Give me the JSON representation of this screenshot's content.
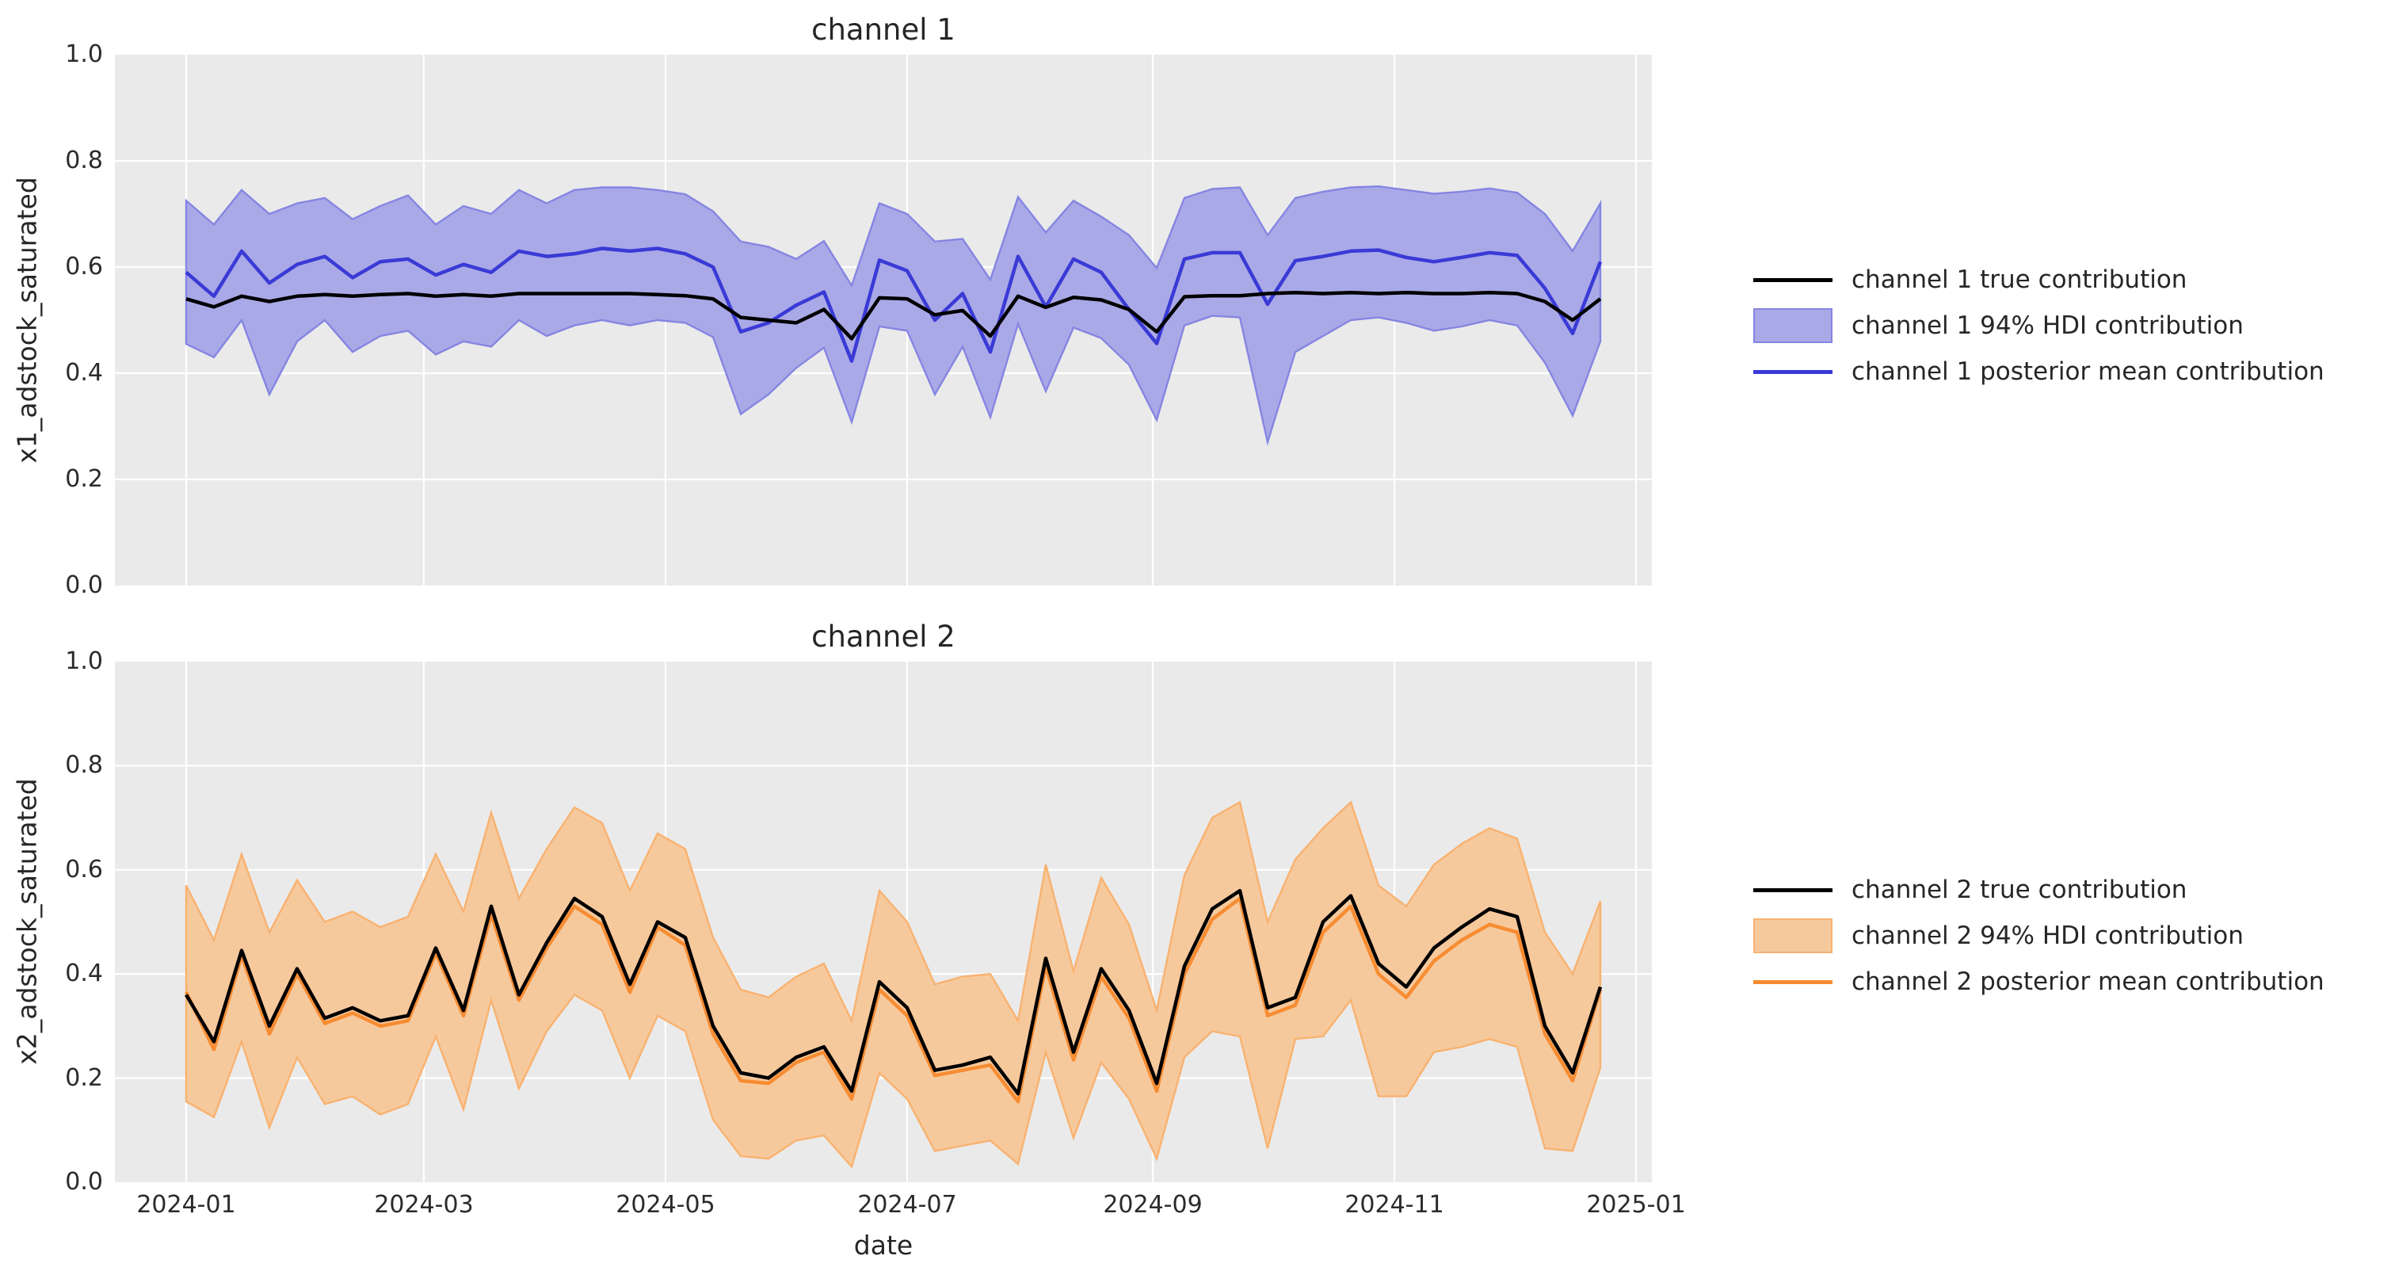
{
  "figure": {
    "background": "#ffffff",
    "plot_background": "#eaeaea",
    "grid_color": "#ffffff",
    "text_color": "#262626"
  },
  "xlabel": "date",
  "xticks": [
    {
      "label": "2024-01",
      "date": "2024-01-01"
    },
    {
      "label": "2024-03",
      "date": "2024-03-01"
    },
    {
      "label": "2024-05",
      "date": "2024-05-01"
    },
    {
      "label": "2024-07",
      "date": "2024-07-01"
    },
    {
      "label": "2024-09",
      "date": "2024-09-01"
    },
    {
      "label": "2024-11",
      "date": "2024-11-01"
    },
    {
      "label": "2025-01",
      "date": "2025-01-01"
    }
  ],
  "yticks": [
    {
      "label": "0.0",
      "value": 0.0
    },
    {
      "label": "0.2",
      "value": 0.2
    },
    {
      "label": "0.4",
      "value": 0.4
    },
    {
      "label": "0.6",
      "value": 0.6
    },
    {
      "label": "0.8",
      "value": 0.8
    },
    {
      "label": "1.0",
      "value": 1.0
    }
  ],
  "chart_data": [
    {
      "type": "line",
      "title": "channel 1",
      "ylabel": "x1_adstock_saturated",
      "xlabel": "",
      "ylim": [
        0,
        1
      ],
      "xlim": [
        "2023-12-14",
        "2025-01-05"
      ],
      "grid": true,
      "legend_position": "right",
      "x": [
        "2024-01-01",
        "2024-01-08",
        "2024-01-15",
        "2024-01-22",
        "2024-01-29",
        "2024-02-05",
        "2024-02-12",
        "2024-02-19",
        "2024-02-26",
        "2024-03-04",
        "2024-03-11",
        "2024-03-18",
        "2024-03-25",
        "2024-04-01",
        "2024-04-08",
        "2024-04-15",
        "2024-04-22",
        "2024-04-29",
        "2024-05-06",
        "2024-05-13",
        "2024-05-20",
        "2024-05-27",
        "2024-06-03",
        "2024-06-10",
        "2024-06-17",
        "2024-06-24",
        "2024-07-01",
        "2024-07-08",
        "2024-07-15",
        "2024-07-22",
        "2024-07-29",
        "2024-08-05",
        "2024-08-12",
        "2024-08-19",
        "2024-08-26",
        "2024-09-02",
        "2024-09-09",
        "2024-09-16",
        "2024-09-23",
        "2024-09-30",
        "2024-10-07",
        "2024-10-14",
        "2024-10-21",
        "2024-10-28",
        "2024-11-04",
        "2024-11-11",
        "2024-11-18",
        "2024-11-25",
        "2024-12-02",
        "2024-12-09",
        "2024-12-16",
        "2024-12-23"
      ],
      "series": [
        {
          "name": "channel 1 true contribution",
          "color": "#000000",
          "values": [
            0.54,
            0.525,
            0.545,
            0.535,
            0.545,
            0.548,
            0.545,
            0.548,
            0.55,
            0.545,
            0.548,
            0.545,
            0.55,
            0.55,
            0.55,
            0.55,
            0.55,
            0.548,
            0.546,
            0.54,
            0.505,
            0.5,
            0.495,
            0.52,
            0.465,
            0.542,
            0.54,
            0.51,
            0.518,
            0.47,
            0.545,
            0.524,
            0.543,
            0.538,
            0.52,
            0.478,
            0.544,
            0.546,
            0.546,
            0.55,
            0.552,
            0.55,
            0.552,
            0.55,
            0.552,
            0.55,
            0.55,
            0.552,
            0.55,
            0.535,
            0.5,
            0.54
          ]
        },
        {
          "name": "channel 1 posterior mean contribution",
          "color": "#3a3ad6",
          "values": [
            0.59,
            0.545,
            0.63,
            0.57,
            0.605,
            0.62,
            0.58,
            0.61,
            0.615,
            0.585,
            0.605,
            0.59,
            0.63,
            0.62,
            0.625,
            0.635,
            0.63,
            0.635,
            0.625,
            0.6,
            0.478,
            0.495,
            0.528,
            0.553,
            0.423,
            0.613,
            0.593,
            0.5,
            0.55,
            0.44,
            0.62,
            0.525,
            0.615,
            0.59,
            0.52,
            0.456,
            0.615,
            0.627,
            0.627,
            0.53,
            0.612,
            0.62,
            0.63,
            0.632,
            0.618,
            0.61,
            0.618,
            0.627,
            0.622,
            0.56,
            0.475,
            0.61
          ]
        }
      ],
      "hdi_band": {
        "name": "channel 1 94% HDI contribution",
        "fill": "#aaa9e7",
        "edge": "#8585e2",
        "lower": [
          0.455,
          0.43,
          0.5,
          0.36,
          0.46,
          0.5,
          0.44,
          0.47,
          0.48,
          0.435,
          0.46,
          0.45,
          0.5,
          0.47,
          0.49,
          0.5,
          0.49,
          0.5,
          0.495,
          0.468,
          0.323,
          0.36,
          0.41,
          0.448,
          0.308,
          0.488,
          0.48,
          0.36,
          0.45,
          0.317,
          0.493,
          0.366,
          0.486,
          0.466,
          0.416,
          0.312,
          0.49,
          0.508,
          0.505,
          0.27,
          0.44,
          0.47,
          0.5,
          0.505,
          0.495,
          0.48,
          0.488,
          0.5,
          0.49,
          0.42,
          0.32,
          0.46
        ],
        "upper": [
          0.725,
          0.68,
          0.745,
          0.7,
          0.72,
          0.73,
          0.69,
          0.715,
          0.735,
          0.68,
          0.715,
          0.7,
          0.745,
          0.72,
          0.745,
          0.75,
          0.75,
          0.745,
          0.737,
          0.705,
          0.648,
          0.638,
          0.615,
          0.649,
          0.565,
          0.72,
          0.7,
          0.648,
          0.653,
          0.576,
          0.732,
          0.665,
          0.725,
          0.695,
          0.66,
          0.598,
          0.73,
          0.747,
          0.75,
          0.66,
          0.73,
          0.742,
          0.75,
          0.752,
          0.745,
          0.738,
          0.742,
          0.748,
          0.74,
          0.7,
          0.63,
          0.72
        ]
      },
      "legend": [
        {
          "label": "channel 1 true contribution",
          "type": "line",
          "color": "#000000"
        },
        {
          "label": "channel 1 94% HDI contribution",
          "type": "patch",
          "fill": "#aaa9e7",
          "edge": "#8585e2"
        },
        {
          "label": "channel 1 posterior mean contribution",
          "type": "line",
          "color": "#3a3ad6"
        }
      ]
    },
    {
      "type": "line",
      "title": "channel 2",
      "ylabel": "x2_adstock_saturated",
      "xlabel": "date",
      "ylim": [
        0,
        1
      ],
      "xlim": [
        "2023-12-14",
        "2025-01-05"
      ],
      "grid": true,
      "legend_position": "right",
      "x": [
        "2024-01-01",
        "2024-01-08",
        "2024-01-15",
        "2024-01-22",
        "2024-01-29",
        "2024-02-05",
        "2024-02-12",
        "2024-02-19",
        "2024-02-26",
        "2024-03-04",
        "2024-03-11",
        "2024-03-18",
        "2024-03-25",
        "2024-04-01",
        "2024-04-08",
        "2024-04-15",
        "2024-04-22",
        "2024-04-29",
        "2024-05-06",
        "2024-05-13",
        "2024-05-20",
        "2024-05-27",
        "2024-06-03",
        "2024-06-10",
        "2024-06-17",
        "2024-06-24",
        "2024-07-01",
        "2024-07-08",
        "2024-07-15",
        "2024-07-22",
        "2024-07-29",
        "2024-08-05",
        "2024-08-12",
        "2024-08-19",
        "2024-08-26",
        "2024-09-02",
        "2024-09-09",
        "2024-09-16",
        "2024-09-23",
        "2024-09-30",
        "2024-10-07",
        "2024-10-14",
        "2024-10-21",
        "2024-10-28",
        "2024-11-04",
        "2024-11-11",
        "2024-11-18",
        "2024-11-25",
        "2024-12-02",
        "2024-12-09",
        "2024-12-16",
        "2024-12-23"
      ],
      "series": [
        {
          "name": "channel 2 true contribution",
          "color": "#000000",
          "values": [
            0.36,
            0.27,
            0.445,
            0.3,
            0.41,
            0.315,
            0.335,
            0.31,
            0.32,
            0.45,
            0.33,
            0.53,
            0.36,
            0.46,
            0.545,
            0.51,
            0.38,
            0.5,
            0.47,
            0.3,
            0.21,
            0.2,
            0.24,
            0.26,
            0.175,
            0.385,
            0.335,
            0.215,
            0.225,
            0.24,
            0.17,
            0.43,
            0.25,
            0.41,
            0.33,
            0.19,
            0.415,
            0.525,
            0.56,
            0.335,
            0.355,
            0.5,
            0.55,
            0.42,
            0.375,
            0.45,
            0.49,
            0.525,
            0.51,
            0.3,
            0.21,
            0.375
          ]
        },
        {
          "name": "channel 2 posterior mean contribution",
          "color": "#f78c32",
          "values": [
            0.365,
            0.255,
            0.435,
            0.285,
            0.4,
            0.305,
            0.325,
            0.3,
            0.31,
            0.44,
            0.32,
            0.515,
            0.35,
            0.45,
            0.53,
            0.495,
            0.365,
            0.49,
            0.455,
            0.285,
            0.195,
            0.19,
            0.23,
            0.25,
            0.16,
            0.37,
            0.32,
            0.205,
            0.215,
            0.225,
            0.155,
            0.415,
            0.235,
            0.395,
            0.315,
            0.175,
            0.4,
            0.505,
            0.545,
            0.32,
            0.34,
            0.48,
            0.53,
            0.4,
            0.355,
            0.425,
            0.465,
            0.495,
            0.48,
            0.285,
            0.195,
            0.37
          ]
        }
      ],
      "hdi_band": {
        "name": "channel 2 94% HDI contribution",
        "fill": "#f6c99d",
        "edge": "#f8b270",
        "lower": [
          0.155,
          0.125,
          0.27,
          0.105,
          0.24,
          0.15,
          0.165,
          0.13,
          0.15,
          0.28,
          0.14,
          0.35,
          0.18,
          0.29,
          0.36,
          0.33,
          0.2,
          0.32,
          0.29,
          0.12,
          0.05,
          0.045,
          0.08,
          0.09,
          0.03,
          0.21,
          0.16,
          0.06,
          0.07,
          0.08,
          0.035,
          0.25,
          0.085,
          0.23,
          0.16,
          0.045,
          0.24,
          0.29,
          0.28,
          0.065,
          0.275,
          0.28,
          0.35,
          0.165,
          0.165,
          0.25,
          0.26,
          0.275,
          0.26,
          0.065,
          0.06,
          0.22
        ],
        "upper": [
          0.57,
          0.465,
          0.63,
          0.48,
          0.58,
          0.5,
          0.52,
          0.49,
          0.51,
          0.63,
          0.52,
          0.71,
          0.545,
          0.64,
          0.72,
          0.69,
          0.56,
          0.67,
          0.64,
          0.47,
          0.37,
          0.355,
          0.395,
          0.42,
          0.31,
          0.56,
          0.5,
          0.38,
          0.395,
          0.4,
          0.31,
          0.61,
          0.405,
          0.585,
          0.495,
          0.33,
          0.59,
          0.7,
          0.73,
          0.5,
          0.62,
          0.68,
          0.73,
          0.57,
          0.53,
          0.61,
          0.65,
          0.68,
          0.66,
          0.48,
          0.4,
          0.54
        ]
      },
      "legend": [
        {
          "label": "channel 2 true contribution",
          "type": "line",
          "color": "#000000"
        },
        {
          "label": "channel 2 94% HDI contribution",
          "type": "patch",
          "fill": "#f6c99d",
          "edge": "#f8b270"
        },
        {
          "label": "channel 2 posterior mean contribution",
          "type": "line",
          "color": "#f78c32"
        }
      ]
    }
  ]
}
